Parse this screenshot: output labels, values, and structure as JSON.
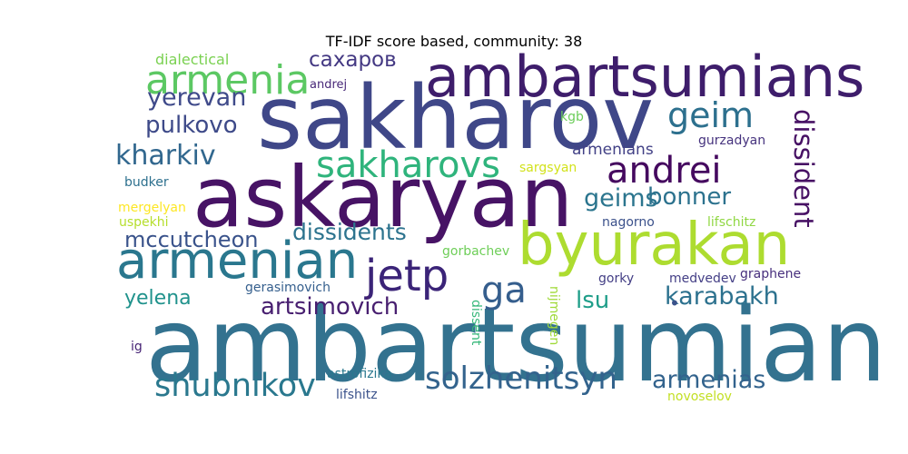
{
  "title": "TF-IDF score based, community: 38",
  "words": [
    {
      "text": "ambartsumian",
      "color": "#33728f",
      "vertical": false
    },
    {
      "text": "sakharov",
      "color": "#3f4788",
      "vertical": false
    },
    {
      "text": "askaryan",
      "color": "#471365",
      "vertical": false
    },
    {
      "text": "ambartsumians",
      "color": "#3e1d6b",
      "vertical": false
    },
    {
      "text": "byurakan",
      "color": "#addc30",
      "vertical": false
    },
    {
      "text": "armenian",
      "color": "#2a778e",
      "vertical": false
    },
    {
      "text": "jetp",
      "color": "#3b2478",
      "vertical": false
    },
    {
      "text": "armenia",
      "color": "#5cc863",
      "vertical": false
    },
    {
      "text": "andrei",
      "color": "#45095f",
      "vertical": false
    },
    {
      "text": "geim",
      "color": "#2d708e",
      "vertical": false
    },
    {
      "text": "sakharovs",
      "color": "#2fb47c",
      "vertical": false
    },
    {
      "text": "ga",
      "color": "#355e8d",
      "vertical": false
    },
    {
      "text": "dissident",
      "color": "#471164",
      "vertical": true
    },
    {
      "text": "shubnikov",
      "color": "#2a788e",
      "vertical": false
    },
    {
      "text": "solzhenitsyn",
      "color": "#33638d",
      "vertical": false
    },
    {
      "text": "kharkiv",
      "color": "#31678e",
      "vertical": false
    },
    {
      "text": "yerevan",
      "color": "#3f4a8a",
      "vertical": false
    },
    {
      "text": "pulkovo",
      "color": "#3e4a89",
      "vertical": false
    },
    {
      "text": "karabakh",
      "color": "#2c718e",
      "vertical": false
    },
    {
      "text": "geims",
      "color": "#2b758e",
      "vertical": false
    },
    {
      "text": "bonner",
      "color": "#2c728e",
      "vertical": false
    },
    {
      "text": "mccutcheon",
      "color": "#3a538b",
      "vertical": false
    },
    {
      "text": "dissidents",
      "color": "#2c738e",
      "vertical": false
    },
    {
      "text": "artsimovich",
      "color": "#481f70",
      "vertical": false
    },
    {
      "text": "armenias",
      "color": "#33638d",
      "vertical": false
    },
    {
      "text": "yelena",
      "color": "#20928c",
      "vertical": false
    },
    {
      "text": "lsu",
      "color": "#1f9e89",
      "vertical": false
    },
    {
      "text": "сахаров",
      "color": "#443983",
      "vertical": false
    },
    {
      "text": "armenians",
      "color": "#424186",
      "vertical": false
    },
    {
      "text": "dialectical",
      "color": "#7ad151",
      "vertical": false
    },
    {
      "text": "andrej",
      "color": "#482878",
      "vertical": false
    },
    {
      "text": "kgb",
      "color": "#6ccd5a",
      "vertical": false
    },
    {
      "text": "gurzadyan",
      "color": "#46337e",
      "vertical": false
    },
    {
      "text": "sargsyan",
      "color": "#d2e21b",
      "vertical": false
    },
    {
      "text": "budker",
      "color": "#2d708e",
      "vertical": false
    },
    {
      "text": "mergelyan",
      "color": "#fde725",
      "vertical": false
    },
    {
      "text": "uspekhi",
      "color": "#b5de2b",
      "vertical": false
    },
    {
      "text": "nagorno",
      "color": "#3b518b",
      "vertical": false
    },
    {
      "text": "lifschitz",
      "color": "#90d743",
      "vertical": false
    },
    {
      "text": "gorbachev",
      "color": "#6ece58",
      "vertical": false
    },
    {
      "text": "gorky",
      "color": "#433e85",
      "vertical": false
    },
    {
      "text": "medvedev",
      "color": "#433e85",
      "vertical": false
    },
    {
      "text": "graphene",
      "color": "#472f7d",
      "vertical": false
    },
    {
      "text": "gerasimovich",
      "color": "#355f8d",
      "vertical": false
    },
    {
      "text": "nijmegen",
      "color": "#a0da39",
      "vertical": true
    },
    {
      "text": "dissent",
      "color": "#35b779",
      "vertical": true
    },
    {
      "text": "ig",
      "color": "#482576",
      "vertical": false
    },
    {
      "text": "astrofizika",
      "color": "#2a788e",
      "vertical": false
    },
    {
      "text": "lifshitz",
      "color": "#3b528b",
      "vertical": false
    },
    {
      "text": "novoselov",
      "color": "#c2df23",
      "vertical": false
    },
    {
      "text": "•",
      "color": "#3b528b",
      "vertical": false
    }
  ]
}
